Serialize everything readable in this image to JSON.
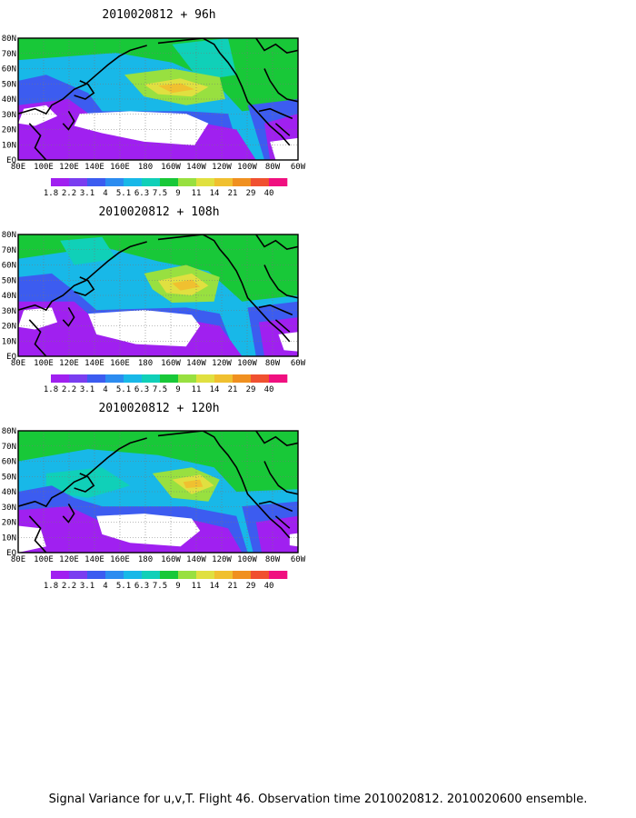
{
  "panels": [
    {
      "title": "2010020812 + 96h"
    },
    {
      "title": "2010020812 + 108h"
    },
    {
      "title": "2010020812 + 120h"
    }
  ],
  "lat_labels": [
    "80N",
    "70N",
    "60N",
    "50N",
    "40N",
    "30N",
    "20N",
    "10N",
    "EQ"
  ],
  "lon_labels": [
    "80E",
    "100E",
    "120E",
    "140E",
    "160E",
    "180",
    "160W",
    "140W",
    "120W",
    "100W",
    "80W",
    "60W"
  ],
  "colorbar": {
    "colors": [
      "#a020f0",
      "#7a3ef0",
      "#3c5cf0",
      "#2c8cf0",
      "#18b8e8",
      "#10d0b8",
      "#18c838",
      "#98e040",
      "#e0e040",
      "#f0c030",
      "#f09020",
      "#f05030",
      "#f01080"
    ],
    "labels": [
      "1.8",
      "2.2",
      "3.1",
      "4",
      "5.1",
      "6.3",
      "7.5",
      "9",
      "11",
      "14",
      "21",
      "29",
      "40"
    ]
  },
  "footer": "Signal Variance for u,v,T. Flight 46. Observation time 2010020812. 2010020600 ensemble."
}
